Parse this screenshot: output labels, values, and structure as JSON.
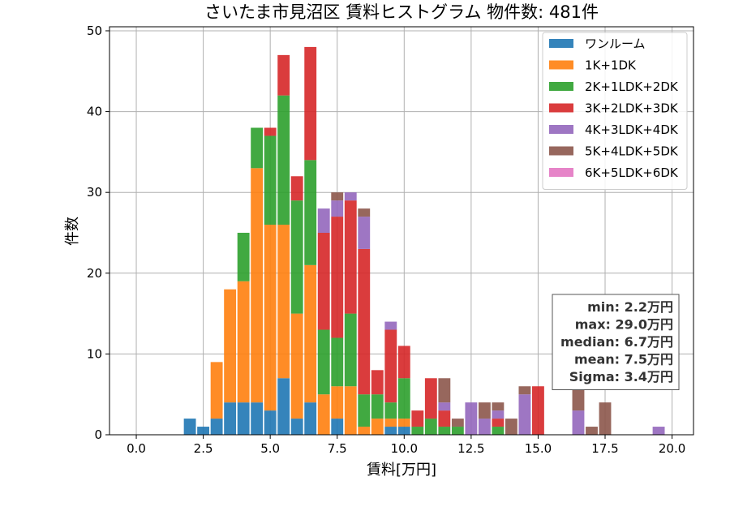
{
  "chart_data": {
    "type": "bar",
    "stacked": true,
    "title": "さいたま市見沼区 賃料ヒストグラム 物件数: 481件",
    "xlabel": "賃料[万円]",
    "ylabel": "件数",
    "xlim": [
      -1.0,
      20.8
    ],
    "ylim": [
      0,
      50.5
    ],
    "xticks": [
      0.0,
      2.5,
      5.0,
      7.5,
      10.0,
      12.5,
      15.0,
      17.5,
      20.0
    ],
    "xtick_labels": [
      "0.0",
      "2.5",
      "5.0",
      "7.5",
      "10.0",
      "12.5",
      "15.0",
      "17.5",
      "20.0"
    ],
    "yticks": [
      0,
      10,
      20,
      30,
      40,
      50
    ],
    "ytick_labels": [
      "0",
      "10",
      "20",
      "30",
      "40",
      "50"
    ],
    "grid": true,
    "legend_position": "top-right",
    "bin_width": 0.5,
    "x": [
      2.0,
      2.5,
      3.0,
      3.5,
      4.0,
      4.5,
      5.0,
      5.5,
      6.0,
      6.5,
      7.0,
      7.5,
      8.0,
      8.5,
      9.0,
      9.5,
      10.0,
      10.5,
      11.0,
      11.5,
      12.0,
      12.5,
      13.0,
      13.5,
      14.0,
      14.5,
      15.0,
      15.5,
      16.0,
      16.5,
      17.0,
      17.5,
      18.0,
      18.5,
      19.0,
      19.5
    ],
    "series": [
      {
        "name": "ワンルーム",
        "color": "#1f77b4",
        "values": [
          2,
          1,
          2,
          4,
          4,
          4,
          3,
          7,
          2,
          4,
          0,
          2,
          0,
          0,
          0,
          1,
          1,
          0,
          0,
          0,
          0,
          0,
          0,
          0,
          0,
          0,
          0,
          0,
          0,
          0,
          0,
          0,
          0,
          0,
          0,
          0
        ]
      },
      {
        "name": "1K+1DK",
        "color": "#ff7f0e",
        "values": [
          0,
          0,
          7,
          14,
          15,
          29,
          23,
          19,
          13,
          17,
          5,
          4,
          6,
          1,
          2,
          1,
          1,
          0,
          0,
          0,
          0,
          0,
          0,
          0,
          0,
          0,
          0,
          0,
          0,
          0,
          0,
          0,
          0,
          0,
          0,
          0
        ]
      },
      {
        "name": "2K+1LDK+2DK",
        "color": "#2ca02c",
        "values": [
          0,
          0,
          0,
          0,
          6,
          5,
          11,
          16,
          14,
          13,
          8,
          6,
          9,
          4,
          3,
          2,
          5,
          1,
          2,
          1,
          1,
          0,
          0,
          1,
          0,
          0,
          0,
          0,
          0,
          0,
          0,
          0,
          0,
          0,
          0,
          0
        ]
      },
      {
        "name": "3K+2LDK+3DK",
        "color": "#d62728",
        "values": [
          0,
          0,
          0,
          0,
          0,
          0,
          1,
          5,
          3,
          14,
          12,
          15,
          14,
          18,
          3,
          9,
          4,
          2,
          5,
          2,
          0,
          0,
          0,
          1,
          0,
          0,
          6,
          0,
          0,
          0,
          0,
          0,
          0,
          0,
          0,
          0
        ]
      },
      {
        "name": "4K+3LDK+4DK",
        "color": "#9467bd",
        "values": [
          0,
          0,
          0,
          0,
          0,
          0,
          0,
          0,
          0,
          0,
          3,
          2,
          1,
          4,
          0,
          1,
          0,
          0,
          0,
          1,
          0,
          4,
          2,
          1,
          0,
          5,
          0,
          0,
          0,
          3,
          0,
          0,
          0,
          0,
          0,
          1
        ]
      },
      {
        "name": "5K+4LDK+5DK",
        "color": "#8c564b",
        "values": [
          0,
          0,
          0,
          0,
          0,
          0,
          0,
          0,
          0,
          0,
          0,
          1,
          0,
          1,
          0,
          0,
          0,
          0,
          0,
          3,
          1,
          0,
          2,
          1,
          2,
          1,
          0,
          0,
          0,
          3,
          1,
          4,
          0,
          0,
          0,
          0
        ]
      },
      {
        "name": "6K+5LDK+6DK",
        "color": "#e377c2",
        "values": [
          0,
          0,
          0,
          0,
          0,
          0,
          0,
          0,
          0,
          0,
          0,
          0,
          0,
          0,
          0,
          0,
          0,
          0,
          0,
          0,
          0,
          0,
          0,
          0,
          0,
          0,
          0,
          0,
          0,
          0,
          0,
          0,
          0,
          0,
          0,
          0
        ]
      }
    ],
    "stats": [
      "min: 2.2万円",
      "max: 29.0万円",
      "median: 6.7万円",
      "mean: 7.5万円",
      "Sigma: 3.4万円"
    ]
  }
}
